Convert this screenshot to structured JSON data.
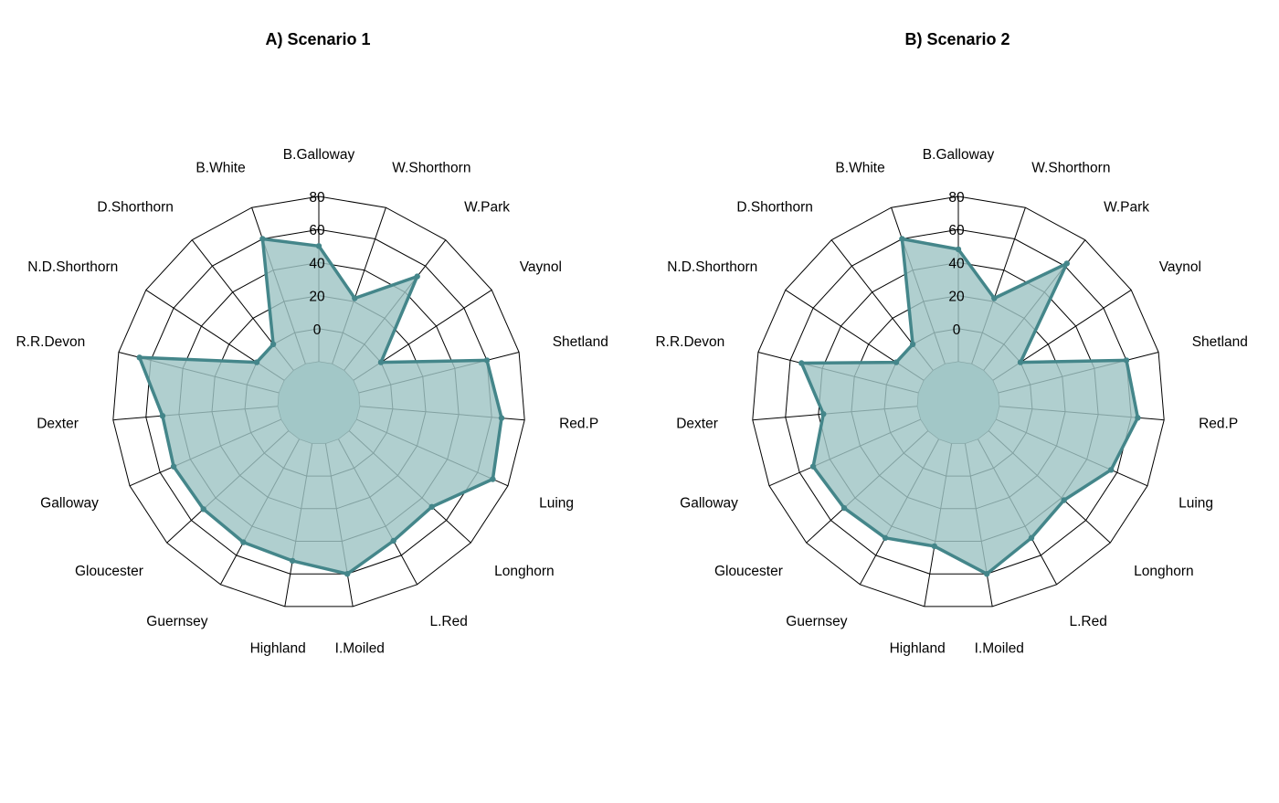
{
  "chart_data": [
    {
      "type": "radar",
      "title": "A) Scenario 1",
      "categories": [
        "B.Galloway",
        "W.Shorthorn",
        "W.Park",
        "Vaynol",
        "Shetland",
        "Red.P",
        "Luing",
        "Longhorn",
        "L.Red",
        "I.Moiled",
        "Highland",
        "Guernsey",
        "Gloucester",
        "Galloway",
        "Dexter",
        "R.R.Devon",
        "N.D.Shorthorn",
        "D.Shorthorn",
        "B.White"
      ],
      "ticks": [
        "0",
        "20",
        "40",
        "60",
        "80"
      ],
      "rlim": [
        -20,
        80
      ],
      "series": [
        {
          "values": [
            50,
            22,
            52,
            0,
            60,
            66,
            70,
            48,
            50,
            60,
            52,
            51,
            50,
            51,
            50,
            67,
            0,
            0,
            60
          ]
        }
      ],
      "colors": {
        "line": "#44868a",
        "fill": "#9fc4c4"
      }
    },
    {
      "type": "radar",
      "title": "B) Scenario 2",
      "categories": [
        "B.Galloway",
        "W.Shorthorn",
        "W.Park",
        "Vaynol",
        "Shetland",
        "Red.P",
        "Luing",
        "Longhorn",
        "L.Red",
        "I.Moiled",
        "Highland",
        "Guernsey",
        "Gloucester",
        "Galloway",
        "Dexter",
        "R.R.Devon",
        "N.D.Shorthorn",
        "D.Shorthorn",
        "B.White"
      ],
      "ticks": [
        "0",
        "20",
        "40",
        "60",
        "80"
      ],
      "rlim": [
        -20,
        80
      ],
      "series": [
        {
          "values": [
            48,
            22,
            62,
            0,
            60,
            64,
            56,
            42,
            48,
            60,
            43,
            48,
            49,
            51,
            37,
            53,
            0,
            0,
            60
          ]
        }
      ],
      "colors": {
        "line": "#44868a",
        "fill": "#9fc4c4"
      }
    }
  ]
}
